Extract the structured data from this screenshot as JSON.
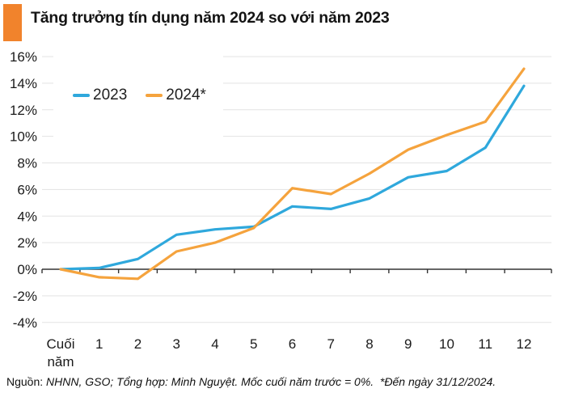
{
  "header": {
    "title": "Tăng trưởng tín dụng năm 2024 so với năm 2023",
    "accent_color": "#F1832C"
  },
  "chart_data": {
    "type": "line",
    "title": "Tăng trưởng tín dụng năm 2024 so với năm 2023",
    "categories": [
      "Cuối năm",
      "1",
      "2",
      "3",
      "4",
      "5",
      "6",
      "7",
      "8",
      "9",
      "10",
      "11",
      "12"
    ],
    "series": [
      {
        "name": "2023",
        "color": "#2FA8DC",
        "values": [
          0,
          0.1,
          0.77,
          2.6,
          3.0,
          3.2,
          4.73,
          4.54,
          5.33,
          6.92,
          7.39,
          9.15,
          13.8
        ]
      },
      {
        "name": "2024*",
        "color": "#F5A33D",
        "values": [
          0,
          -0.6,
          -0.72,
          1.34,
          2.0,
          3.1,
          6.1,
          5.66,
          7.2,
          9.0,
          10.1,
          11.1,
          15.08
        ]
      }
    ],
    "ylim": [
      -4,
      16
    ],
    "ytick_labels": [
      "16%",
      "14%",
      "12%",
      "10%",
      "8%",
      "6%",
      "4%",
      "2%",
      "0%",
      "-2%",
      "-4%"
    ],
    "ytick_values": [
      16,
      14,
      12,
      10,
      8,
      6,
      4,
      2,
      0,
      -2,
      -4
    ],
    "baseline_value": 0,
    "grid": true,
    "legend_position": "inside-top-left",
    "gridline_color": "#E3E3E3",
    "axis_color": "#333333",
    "label_color": "#1A1A1A"
  },
  "footer": {
    "source_label": "Nguồn:",
    "source_text": "NHNN, GSO; Tổng hợp: Minh Nguyệt. Mốc cuối năm trước = 0%.  *Đến ngày 31/12/2024."
  }
}
